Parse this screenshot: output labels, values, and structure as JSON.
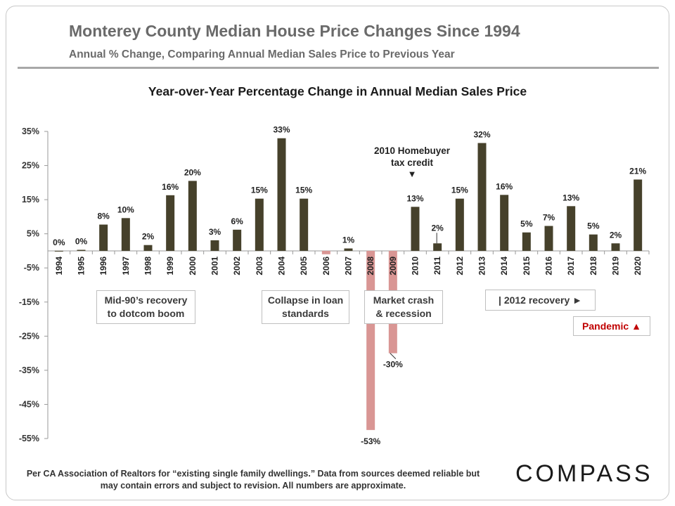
{
  "header": {
    "title": "Monterey County Median House Price Changes Since 1994",
    "subtitle": "Annual % Change, Comparing Annual Median Sales Price to Previous Year"
  },
  "chart_data": {
    "type": "bar",
    "title": "Year-over-Year Percentage Change in Annual Median Sales Price",
    "xlabel": "",
    "ylabel": "",
    "ylim": [
      -55,
      35
    ],
    "yticks": [
      35,
      25,
      15,
      5,
      -5,
      -15,
      -25,
      -35,
      -45,
      -55
    ],
    "ytick_labels": [
      "35%",
      "25%",
      "15%",
      "5%",
      "-5%",
      "-15%",
      "-25%",
      "-35%",
      "-45%",
      "-55%"
    ],
    "grid": false,
    "categories": [
      "1994",
      "1995",
      "1996",
      "1997",
      "1998",
      "1999",
      "2000",
      "2001",
      "2002",
      "2003",
      "2004",
      "2005",
      "2006",
      "2007",
      "2008",
      "2009",
      "2010",
      "2011",
      "2012",
      "2013",
      "2014",
      "2015",
      "2016",
      "2017",
      "2018",
      "2019",
      "2020"
    ],
    "values": [
      0,
      0.3,
      7.7,
      9.6,
      1.7,
      16.3,
      20.5,
      3.1,
      6.2,
      15.3,
      33,
      15.3,
      -1,
      0.7,
      -52.5,
      -30,
      12.9,
      2.2,
      15.3,
      31.6,
      16.4,
      5.4,
      7.3,
      13.1,
      4.8,
      2.2,
      20.9
    ],
    "data_labels": [
      "0%",
      "0%",
      "8%",
      "10%",
      "2%",
      "16%",
      "20%",
      "3%",
      "6%",
      "15%",
      "33%",
      "15%",
      "",
      "1%",
      "-53%",
      "-30%",
      "13%",
      "2%",
      "15%",
      "32%",
      "16%",
      "5%",
      "7%",
      "13%",
      "5%",
      "2%",
      "21%"
    ],
    "colors": {
      "positive": "#46412b",
      "negative": "#d99694"
    }
  },
  "annotations": {
    "homebuyer_credit": "2010 Homebuyer\ntax credit",
    "homebuyer_arrow": "▼",
    "mid90s": "Mid-90’s recovery\nto dotcom boom",
    "collapse": "Collapse in loan\nstandards",
    "crash": "Market crash\n& recession",
    "recovery": "| 2012 recovery ►",
    "pandemic": "Pandemic ▲"
  },
  "footer": {
    "note": "Per CA Association of Realtors for “existing single family dwellings.” Data from sources deemed reliable but may contain errors and subject to revision. All numbers are approximate.",
    "logo": "COMPASS"
  }
}
